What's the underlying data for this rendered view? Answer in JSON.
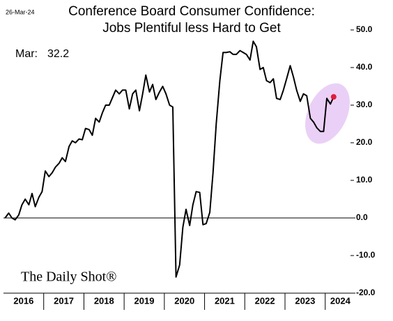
{
  "chart_data": {
    "type": "line",
    "title": "Conference Board Consumer Confidence:",
    "subtitle": "Jobs Plentiful less Hard to Get",
    "date_note": "26-Mar-24",
    "brand": "The Daily Shot®",
    "annotation": {
      "label": "Mar:",
      "value": 32.2
    },
    "year_labels": [
      "2016",
      "2017",
      "2018",
      "2019",
      "2020",
      "2021",
      "2022",
      "2023",
      "2024"
    ],
    "xlim": [
      2016,
      2024.75
    ],
    "xticks": [
      2017,
      2018,
      2019,
      2020,
      2021,
      2022,
      2023,
      2024
    ],
    "ylim": [
      -20,
      50
    ],
    "yticks": [
      {
        "value": 50,
        "label": "50.0"
      },
      {
        "value": 40,
        "label": "40.0"
      },
      {
        "value": 30,
        "label": "30.0"
      },
      {
        "value": 20,
        "label": "20.0"
      },
      {
        "value": 10,
        "label": "10.0"
      },
      {
        "value": 0,
        "label": "0.0"
      },
      {
        "value": -10,
        "label": "-10.0"
      },
      {
        "value": -20,
        "label": "-20.0"
      }
    ],
    "series": [
      {
        "name": "Jobs Plentiful less Hard to Get",
        "color": "#000000",
        "x": [
          2016.04,
          2016.13,
          2016.21,
          2016.29,
          2016.38,
          2016.46,
          2016.54,
          2016.63,
          2016.71,
          2016.79,
          2016.88,
          2016.96,
          2017.04,
          2017.13,
          2017.21,
          2017.29,
          2017.38,
          2017.46,
          2017.54,
          2017.63,
          2017.71,
          2017.79,
          2017.88,
          2017.96,
          2018.04,
          2018.13,
          2018.21,
          2018.29,
          2018.38,
          2018.46,
          2018.54,
          2018.63,
          2018.71,
          2018.79,
          2018.88,
          2018.96,
          2019.04,
          2019.13,
          2019.21,
          2019.29,
          2019.38,
          2019.46,
          2019.54,
          2019.63,
          2019.71,
          2019.79,
          2019.88,
          2019.96,
          2020.04,
          2020.13,
          2020.21,
          2020.29,
          2020.38,
          2020.46,
          2020.54,
          2020.63,
          2020.71,
          2020.79,
          2020.88,
          2020.96,
          2021.04,
          2021.13,
          2021.21,
          2021.29,
          2021.38,
          2021.46,
          2021.54,
          2021.63,
          2021.71,
          2021.79,
          2021.88,
          2021.96,
          2022.04,
          2022.13,
          2022.21,
          2022.29,
          2022.38,
          2022.46,
          2022.54,
          2022.63,
          2022.71,
          2022.79,
          2022.88,
          2022.96,
          2023.04,
          2023.13,
          2023.21,
          2023.29,
          2023.38,
          2023.46,
          2023.54,
          2023.63,
          2023.71,
          2023.79,
          2023.88,
          2023.96,
          2024.04,
          2024.13,
          2024.21
        ],
        "values": [
          0,
          1.3,
          0,
          -0.5,
          0.8,
          3.5,
          5,
          3.5,
          6.5,
          3,
          5.5,
          7,
          12.5,
          11,
          12,
          13.5,
          14.5,
          16,
          15,
          19,
          20.5,
          20,
          21,
          20.8,
          23.8,
          23.5,
          22,
          26.5,
          25.5,
          28,
          30,
          30,
          32,
          34,
          33,
          34,
          34,
          29,
          33,
          34,
          28.5,
          33,
          38,
          33.5,
          35.5,
          31.5,
          33.5,
          35,
          33,
          30,
          29.5,
          -15.7,
          -12.5,
          -2.5,
          2.3,
          -2,
          3.5,
          7,
          6.8,
          -1.8,
          -1.5,
          1.5,
          12,
          25,
          36.5,
          44,
          44,
          44.2,
          43.5,
          43.5,
          44.5,
          44,
          43.5,
          42,
          47,
          45.5,
          39.5,
          40,
          36.5,
          36,
          37,
          31.8,
          31.5,
          34,
          37,
          40.5,
          37.5,
          34,
          31,
          33,
          32.5,
          26.5,
          25.5,
          24,
          23,
          23,
          31.8,
          30.3,
          32.2
        ]
      }
    ],
    "highlight_color": "#e21b3c"
  }
}
